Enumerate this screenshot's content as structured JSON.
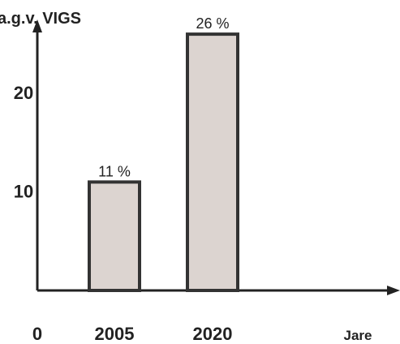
{
  "chart_data": {
    "type": "bar",
    "title": "",
    "ylabel": "a.g.v. VIGS",
    "xlabel": "Jare",
    "origin_label": "0",
    "categories": [
      "2005",
      "2020"
    ],
    "values": [
      11,
      26
    ],
    "value_labels": [
      "11 %",
      "26 %"
    ],
    "y_ticks": [
      10,
      20
    ],
    "ylim": [
      0,
      28.5
    ],
    "grid": false,
    "legend": "none"
  },
  "colors": {
    "bar_fill": "#dcd4d0",
    "bar_stroke": "#333333",
    "axis": "#222222",
    "text": "#222222"
  }
}
